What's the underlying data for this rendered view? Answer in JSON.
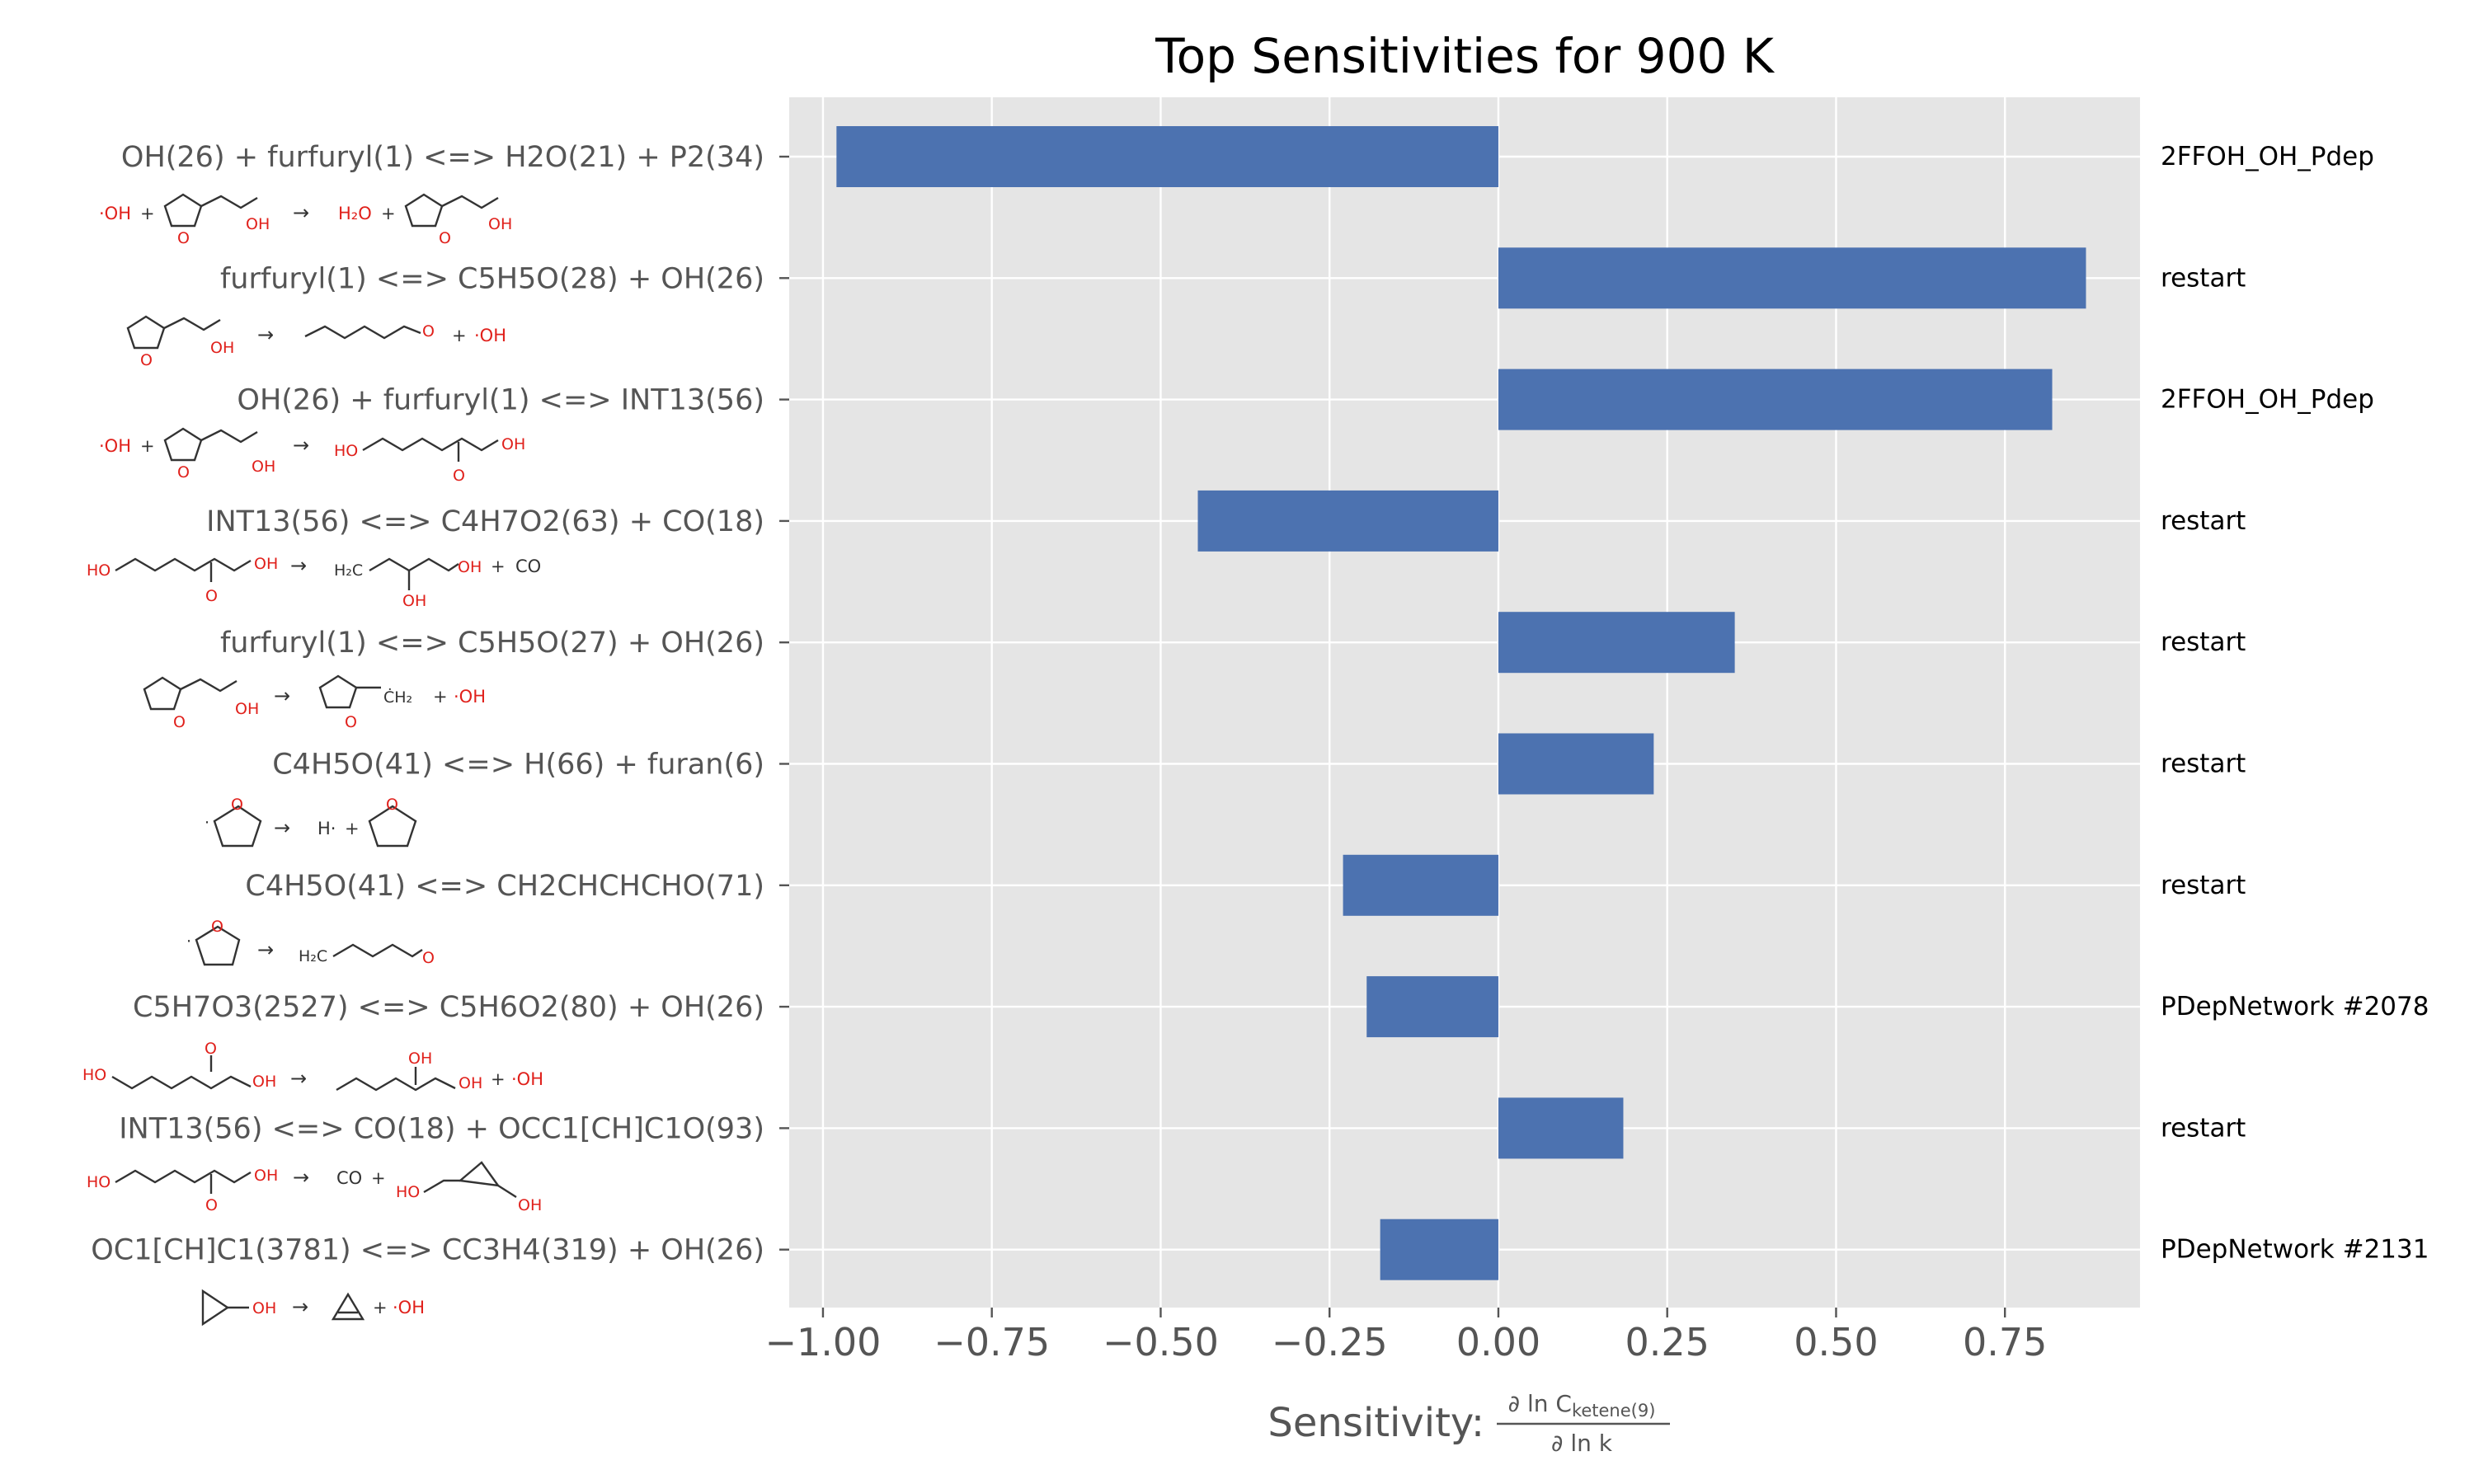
{
  "chart_data": {
    "type": "bar",
    "orientation": "horizontal",
    "title": "Top Sensitivities for 900 K",
    "xlabel_prefix": "Sensitivity:",
    "xlabel_num": "∂ ln C",
    "xlabel_sub": "ketene(9)",
    "xlabel_den": "∂ ln k",
    "xlim": [
      -1.05,
      0.95
    ],
    "xticks": [
      -1.0,
      -0.75,
      -0.5,
      -0.25,
      0.0,
      0.25,
      0.5,
      0.75
    ],
    "xtick_labels": [
      "−1.00",
      "−0.75",
      "−0.50",
      "−0.25",
      "0.00",
      "0.25",
      "0.50",
      "0.75"
    ],
    "grid": true,
    "bar_color": "#4c72b0",
    "background_color": "#e5e5e5",
    "categories": [
      "OH(26) + furfuryl(1) <=> H2O(21) + P2(34)",
      "furfuryl(1) <=> C5H5O(28) + OH(26)",
      "OH(26) + furfuryl(1) <=> INT13(56)",
      "INT13(56) <=> C4H7O2(63) + CO(18)",
      "furfuryl(1) <=> C5H5O(27) + OH(26)",
      "C4H5O(41) <=> H(66) + furan(6)",
      "C4H5O(41) <=> CH2CHCHCHO(71)",
      "C5H7O3(2527) <=> C5H6O2(80) + OH(26)",
      "INT13(56) <=> CO(18) + OCC1[CH]C1O(93)",
      "OC1[CH]C1(3781) <=> CC3H4(319) + OH(26)"
    ],
    "values": [
      -0.98,
      0.87,
      0.82,
      -0.445,
      0.35,
      0.23,
      -0.23,
      -0.195,
      0.185,
      -0.175
    ],
    "sources": [
      "2FFOH_OH_Pdep",
      "restart",
      "2FFOH_OH_Pdep",
      "restart",
      "restart",
      "restart",
      "restart",
      "PDepNetwork #2078",
      "restart",
      "PDepNetwork #2131"
    ]
  }
}
